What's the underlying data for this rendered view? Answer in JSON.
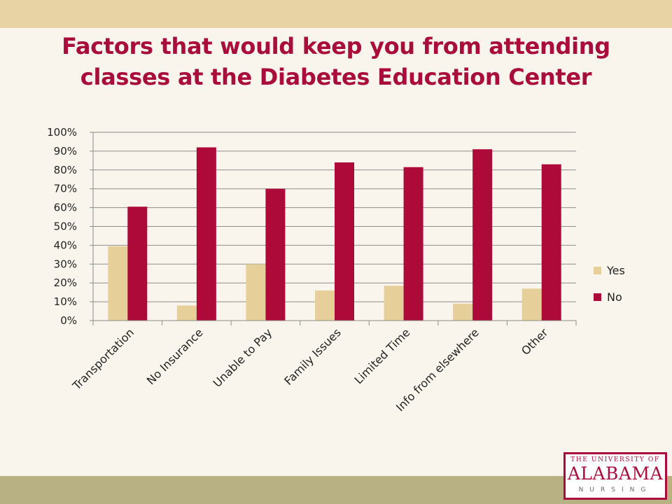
{
  "title": "Factors that would keep you from attending classes at the Diabetes Education Center",
  "logo": {
    "line1": "THE UNIVERSITY OF",
    "line2": "ALABAMA",
    "line3": "NURSING"
  },
  "colors": {
    "yes": "#e6cf99",
    "no": "#ad0a3a",
    "title": "#a80d3c"
  },
  "chart_data": {
    "type": "bar",
    "categories": [
      "Transportation",
      "No Insurance",
      "Unable to Pay",
      "Family Issues",
      "Limited Time",
      "Info from elsewhere",
      "Other"
    ],
    "series": [
      {
        "name": "Yes",
        "values": [
          39.5,
          8,
          30,
          16,
          18.5,
          9,
          17
        ]
      },
      {
        "name": "No",
        "values": [
          60.5,
          92,
          70,
          84,
          81.5,
          91,
          83
        ]
      }
    ],
    "yticks": [
      "0%",
      "10%",
      "20%",
      "30%",
      "40%",
      "50%",
      "60%",
      "70%",
      "80%",
      "90%",
      "100%"
    ],
    "ylim": [
      0,
      100
    ],
    "legend_position": "right",
    "grid": true
  }
}
